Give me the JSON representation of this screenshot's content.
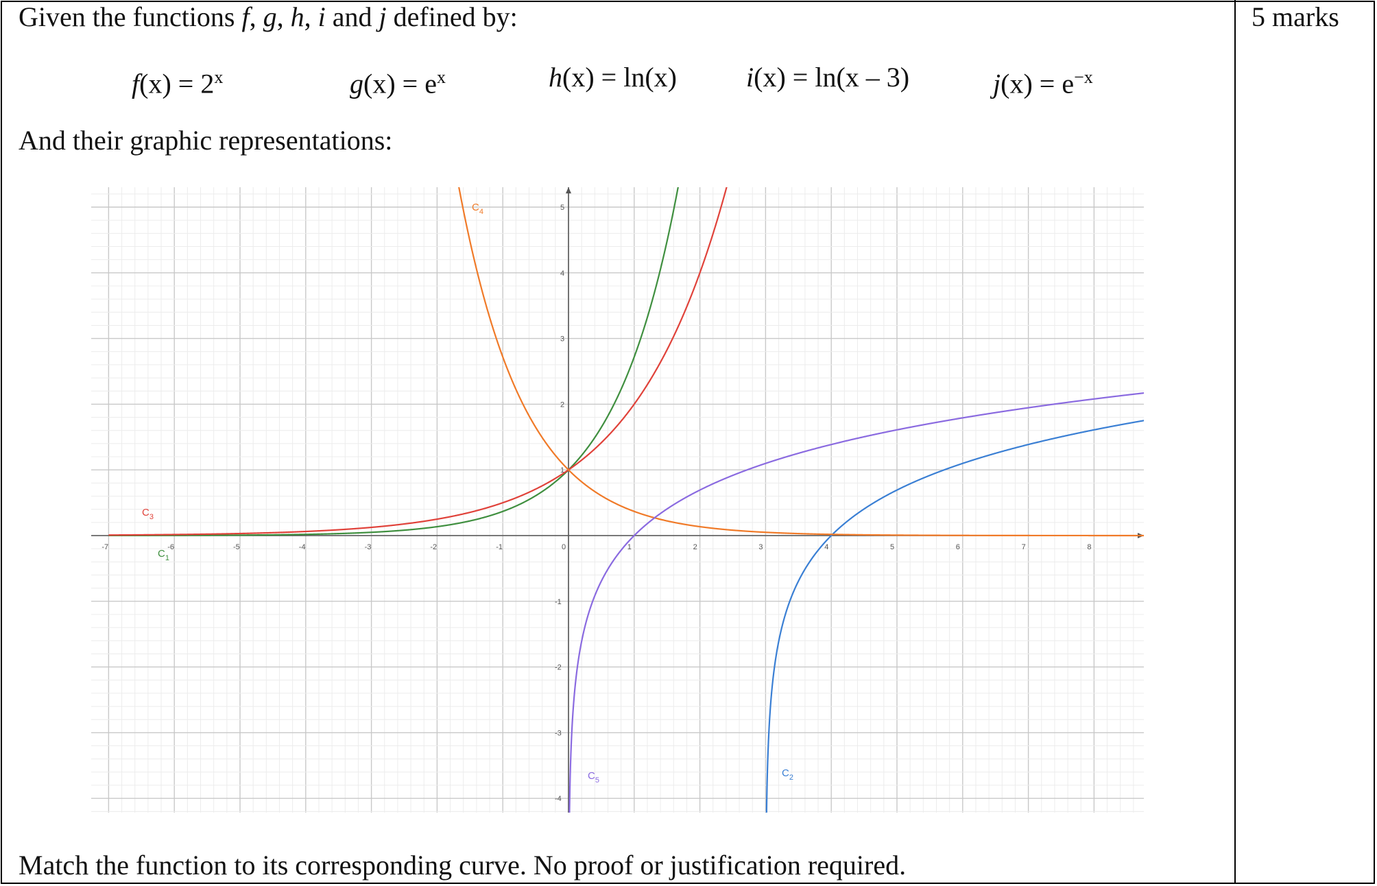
{
  "header": {
    "intro_prefix": "Given the functions",
    "intro_f": "f",
    "intro_sep1": ",",
    "intro_g": "g",
    "intro_sep2": ",",
    "intro_h": "h",
    "intro_sep3": ",",
    "intro_i": "i",
    "intro_and": "and",
    "intro_j": "j",
    "intro_suffix": "defined by:",
    "marks": "5 marks"
  },
  "functions": [
    {
      "name": "f",
      "arg": "(x) = ",
      "expr": "2",
      "sup": "x"
    },
    {
      "name": "g",
      "arg": "(x) = ",
      "expr": "e",
      "sup": "x"
    },
    {
      "name": "h",
      "arg": "(x) = ",
      "expr": "ln(x)",
      "sup": ""
    },
    {
      "name": "i",
      "arg": "(x) = ",
      "expr": "ln(x – 3)",
      "sup": ""
    },
    {
      "name": "j",
      "arg": "(x) = ",
      "expr": "e",
      "sup": "−x"
    }
  ],
  "subheading": "And their graphic representations:",
  "task": "Match the function to its corresponding curve. No proof or justification required.",
  "chart_data": {
    "type": "line",
    "xlim": [
      -7,
      8.8
    ],
    "ylim": [
      -4.2,
      5.3
    ],
    "x_ticks": [
      "-7",
      "-6",
      "-5",
      "-4",
      "-3",
      "-2",
      "-1",
      "0",
      "1",
      "2",
      "3",
      "4",
      "5",
      "6",
      "7",
      "8"
    ],
    "y_ticks": [
      "-4",
      "-3",
      "-2",
      "-1",
      "1",
      "2",
      "3",
      "4",
      "5"
    ],
    "grid": true,
    "series": [
      {
        "name": "C1",
        "formula": "e^x",
        "color": "#3f8f3f"
      },
      {
        "name": "C2",
        "formula": "ln(x-3)",
        "color": "#3a7fd4"
      },
      {
        "name": "C3",
        "formula": "2^x",
        "color": "#e0423a"
      },
      {
        "name": "C4",
        "formula": "e^-x",
        "color": "#f07a28"
      },
      {
        "name": "C5",
        "formula": "ln(x)",
        "color": "#8a6ae0"
      }
    ],
    "curve_labels": [
      {
        "letter": "C",
        "sub": "1",
        "color": "#3f8f3f"
      },
      {
        "letter": "C",
        "sub": "2",
        "color": "#3a7fd4"
      },
      {
        "letter": "C",
        "sub": "3",
        "color": "#e0423a"
      },
      {
        "letter": "C",
        "sub": "4",
        "color": "#f07a28"
      },
      {
        "letter": "C",
        "sub": "5",
        "color": "#8a6ae0"
      }
    ]
  }
}
